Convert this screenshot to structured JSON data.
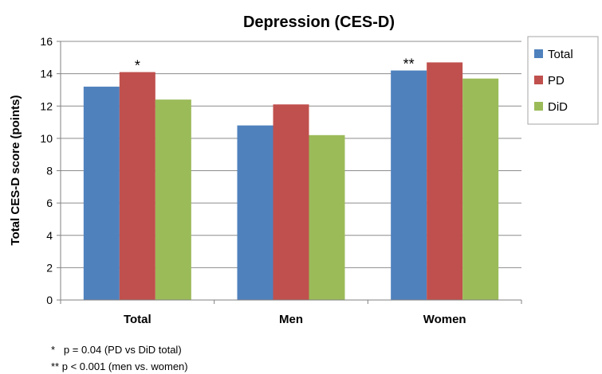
{
  "chart_data": {
    "type": "bar",
    "title": "Depression (CES-D)",
    "ylabel": "Total CES-D score (points)",
    "xlabel": "",
    "ylim": [
      0,
      16
    ],
    "yticks": [
      0,
      2,
      4,
      6,
      8,
      10,
      12,
      14,
      16
    ],
    "grid": true,
    "legend": "right",
    "categories": [
      "Total",
      "Men",
      "Women"
    ],
    "series": [
      {
        "name": "Total",
        "color": "#4F81BD",
        "values": [
          13.2,
          10.8,
          14.2
        ]
      },
      {
        "name": "PD",
        "color": "#C0504D",
        "values": [
          14.1,
          12.1,
          14.7
        ]
      },
      {
        "name": "DiD",
        "color": "#9BBB59",
        "values": [
          12.4,
          10.2,
          13.7
        ]
      }
    ],
    "annotations": [
      {
        "text": "*",
        "category": 0,
        "series": 1
      },
      {
        "text": "**",
        "category": 2,
        "series": 0
      }
    ],
    "footnotes": [
      "*   p = 0.04 (PD vs DiD total)",
      "** p < 0.001 (men vs. women)"
    ]
  }
}
